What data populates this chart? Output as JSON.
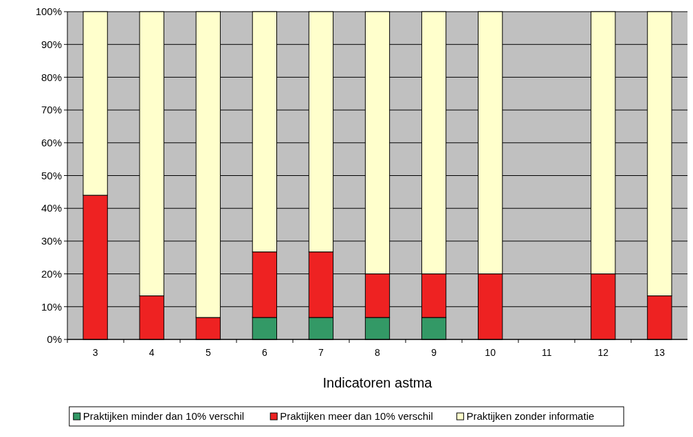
{
  "chart_data": {
    "type": "bar",
    "stacked": true,
    "xlabel": "Indicatoren astma",
    "categories": [
      "3",
      "4",
      "5",
      "6",
      "7",
      "8",
      "9",
      "10",
      "11",
      "12",
      "13"
    ],
    "series": [
      {
        "name": "Praktijken minder dan 10% verschil",
        "color": "#339966",
        "values": [
          0,
          0,
          0,
          6.7,
          6.7,
          6.7,
          6.7,
          0,
          0,
          0,
          0
        ]
      },
      {
        "name": "Praktijken meer dan 10% verschil",
        "color": "#ee2222",
        "values": [
          44,
          13.3,
          6.7,
          20,
          20,
          13.3,
          13.3,
          20,
          0,
          20,
          13.3
        ]
      },
      {
        "name": "Praktijken zonder informatie",
        "color": "#ffffcc",
        "values": [
          56,
          86.7,
          93.3,
          73.3,
          73.3,
          80,
          80,
          80,
          0,
          80,
          86.7
        ]
      }
    ],
    "ylim": [
      0,
      100
    ],
    "yticks": [
      {
        "value": 0,
        "label": "0%"
      },
      {
        "value": 10,
        "label": "10%"
      },
      {
        "value": 20,
        "label": "20%"
      },
      {
        "value": 30,
        "label": "30%"
      },
      {
        "value": 40,
        "label": "40%"
      },
      {
        "value": 50,
        "label": "50%"
      },
      {
        "value": 60,
        "label": "60%"
      },
      {
        "value": 70,
        "label": "70%"
      },
      {
        "value": 80,
        "label": "80%"
      },
      {
        "value": 90,
        "label": "90%"
      },
      {
        "value": 100,
        "label": "100%"
      }
    ],
    "grid": "y",
    "legend": "bottom"
  }
}
